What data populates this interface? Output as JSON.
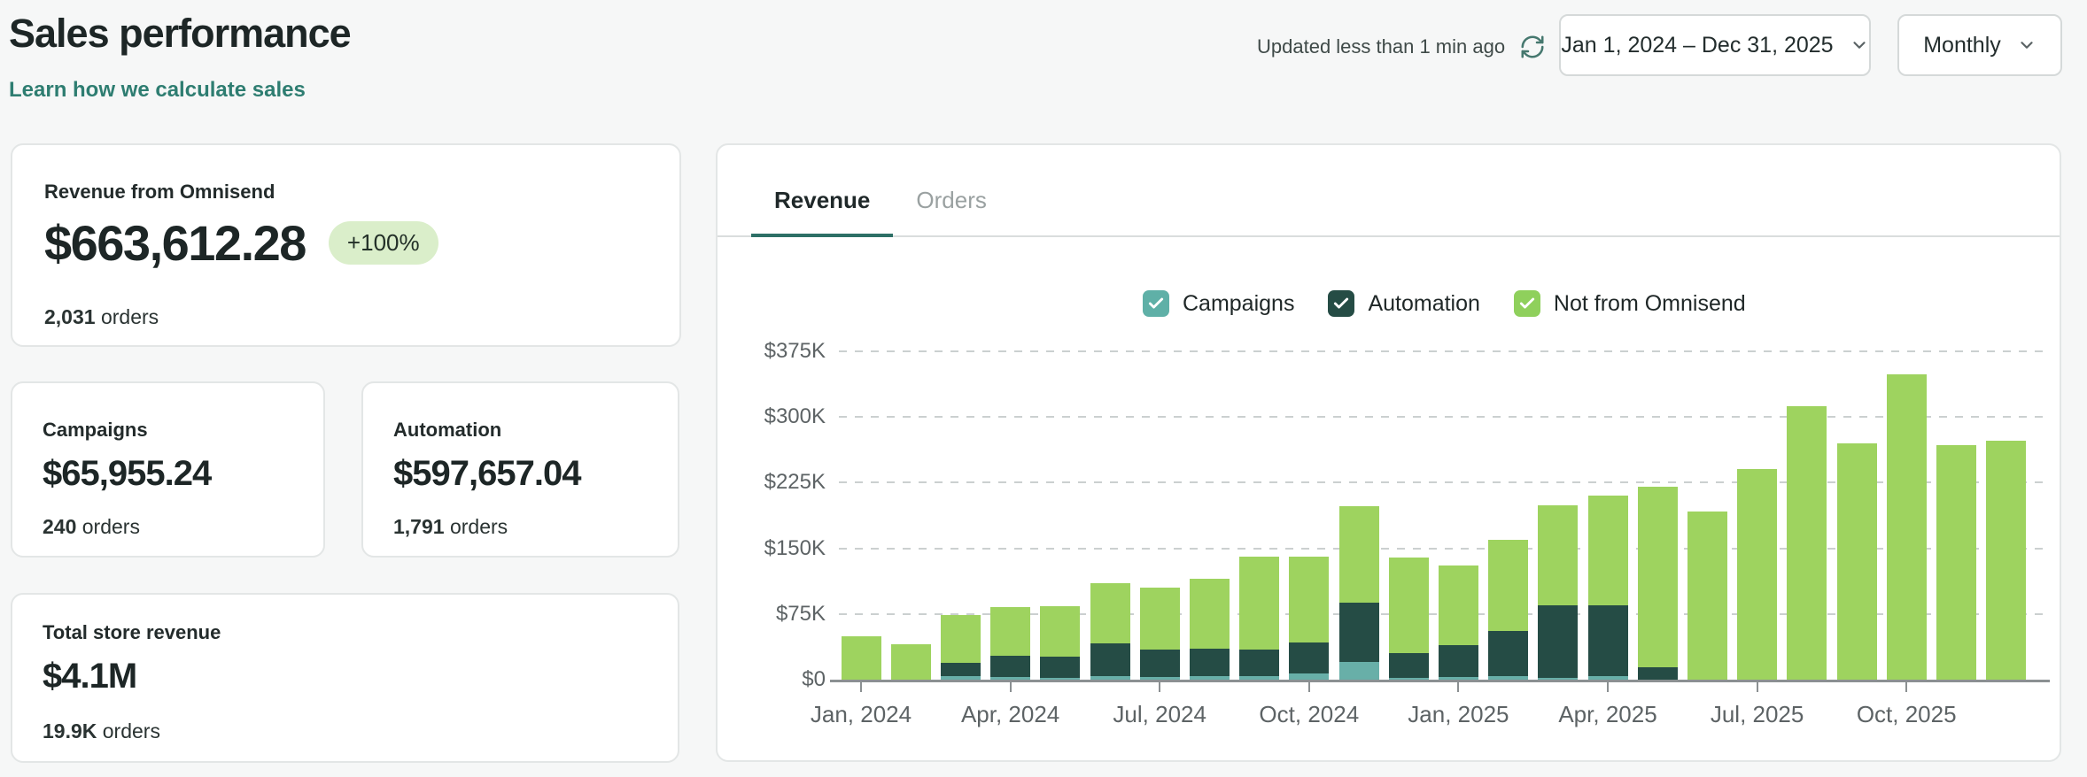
{
  "header": {
    "title": "Sales performance",
    "link": "Learn how we calculate sales",
    "updated_text": "Updated less than 1 min ago",
    "date_range": "Jan 1, 2024 – Dec 31, 2025",
    "granularity": "Monthly"
  },
  "cards": {
    "revenue": {
      "label": "Revenue from Omnisend",
      "value": "$663,612.28",
      "badge": "+100%",
      "orders": "2,031",
      "orders_suffix": " orders"
    },
    "campaigns": {
      "label": "Campaigns",
      "value": "$65,955.24",
      "orders": "240",
      "orders_suffix": " orders"
    },
    "automation": {
      "label": "Automation",
      "value": "$597,657.04",
      "orders": "1,791",
      "orders_suffix": " orders"
    },
    "total_store": {
      "label": "Total store revenue",
      "value": "$4.1M",
      "orders": "19.9K",
      "orders_suffix": " orders"
    }
  },
  "chart_card": {
    "tabs": [
      {
        "label": "Revenue",
        "active": true
      },
      {
        "label": "Orders",
        "active": false
      }
    ],
    "legend": [
      {
        "label": "Campaigns",
        "color": "#5fb0a7",
        "checked": true
      },
      {
        "label": "Automation",
        "color": "#254c45",
        "checked": true
      },
      {
        "label": "Not from Omnisend",
        "color": "#8fd05c",
        "checked": true
      }
    ]
  },
  "chart_data": {
    "type": "bar",
    "stacked": true,
    "units": "thousand USD",
    "ylim": [
      0,
      375
    ],
    "grid": "horizontal dashed",
    "legend_position": "top-right",
    "categories": [
      "Jan 2024",
      "Feb 2024",
      "Mar 2024",
      "Apr 2024",
      "May 2024",
      "Jun 2024",
      "Jul 2024",
      "Aug 2024",
      "Sep 2024",
      "Oct 2024",
      "Nov 2024",
      "Dec 2024",
      "Jan 2025",
      "Feb 2025",
      "Mar 2025",
      "Apr 2025",
      "May 2025",
      "Jun 2025",
      "Jul 2025",
      "Aug 2025",
      "Sep 2025",
      "Oct 2025",
      "Nov 2025",
      "Dec 2025"
    ],
    "series": [
      {
        "name": "Campaigns",
        "color": "#68afa8",
        "values": [
          0,
          0,
          4,
          3,
          2,
          4,
          3,
          4,
          4,
          7,
          20,
          2,
          3,
          4,
          2,
          4,
          0,
          0,
          0,
          0,
          0,
          0,
          0,
          0
        ]
      },
      {
        "name": "Automation",
        "color": "#254c45",
        "values": [
          0,
          0,
          15,
          24,
          24,
          37,
          31,
          31,
          30,
          35,
          68,
          28,
          36,
          52,
          83,
          81,
          14,
          0,
          0,
          0,
          0,
          0,
          0,
          0
        ]
      },
      {
        "name": "Not from Omnisend",
        "color": "#9ed35f",
        "values": [
          50,
          40,
          55,
          56,
          58,
          69,
          71,
          80,
          107,
          99,
          110,
          109,
          91,
          104,
          114,
          125,
          206,
          192,
          241,
          312,
          270,
          349,
          268,
          273
        ]
      }
    ],
    "y_ticks": [
      {
        "label": "$375K",
        "value": 375
      },
      {
        "label": "$300K",
        "value": 300
      },
      {
        "label": "$225K",
        "value": 225
      },
      {
        "label": "$150K",
        "value": 150
      },
      {
        "label": "$75K",
        "value": 75
      },
      {
        "label": "$0",
        "value": 0
      }
    ],
    "x_ticks": [
      {
        "label": "Jan, 2024",
        "index": 0
      },
      {
        "label": "Apr, 2024",
        "index": 3
      },
      {
        "label": "Jul, 2024",
        "index": 6
      },
      {
        "label": "Oct, 2024",
        "index": 9
      },
      {
        "label": "Jan, 2025",
        "index": 12
      },
      {
        "label": "Apr, 2025",
        "index": 15
      },
      {
        "label": "Jul, 2025",
        "index": 18
      },
      {
        "label": "Oct, 2025",
        "index": 21
      }
    ]
  },
  "colors": {
    "accent_teal": "#2d6f66",
    "link": "#2e7d71",
    "badge_bg": "#daeeca",
    "page_bg": "#f6f7f7",
    "axis_text": "#5d6365"
  }
}
